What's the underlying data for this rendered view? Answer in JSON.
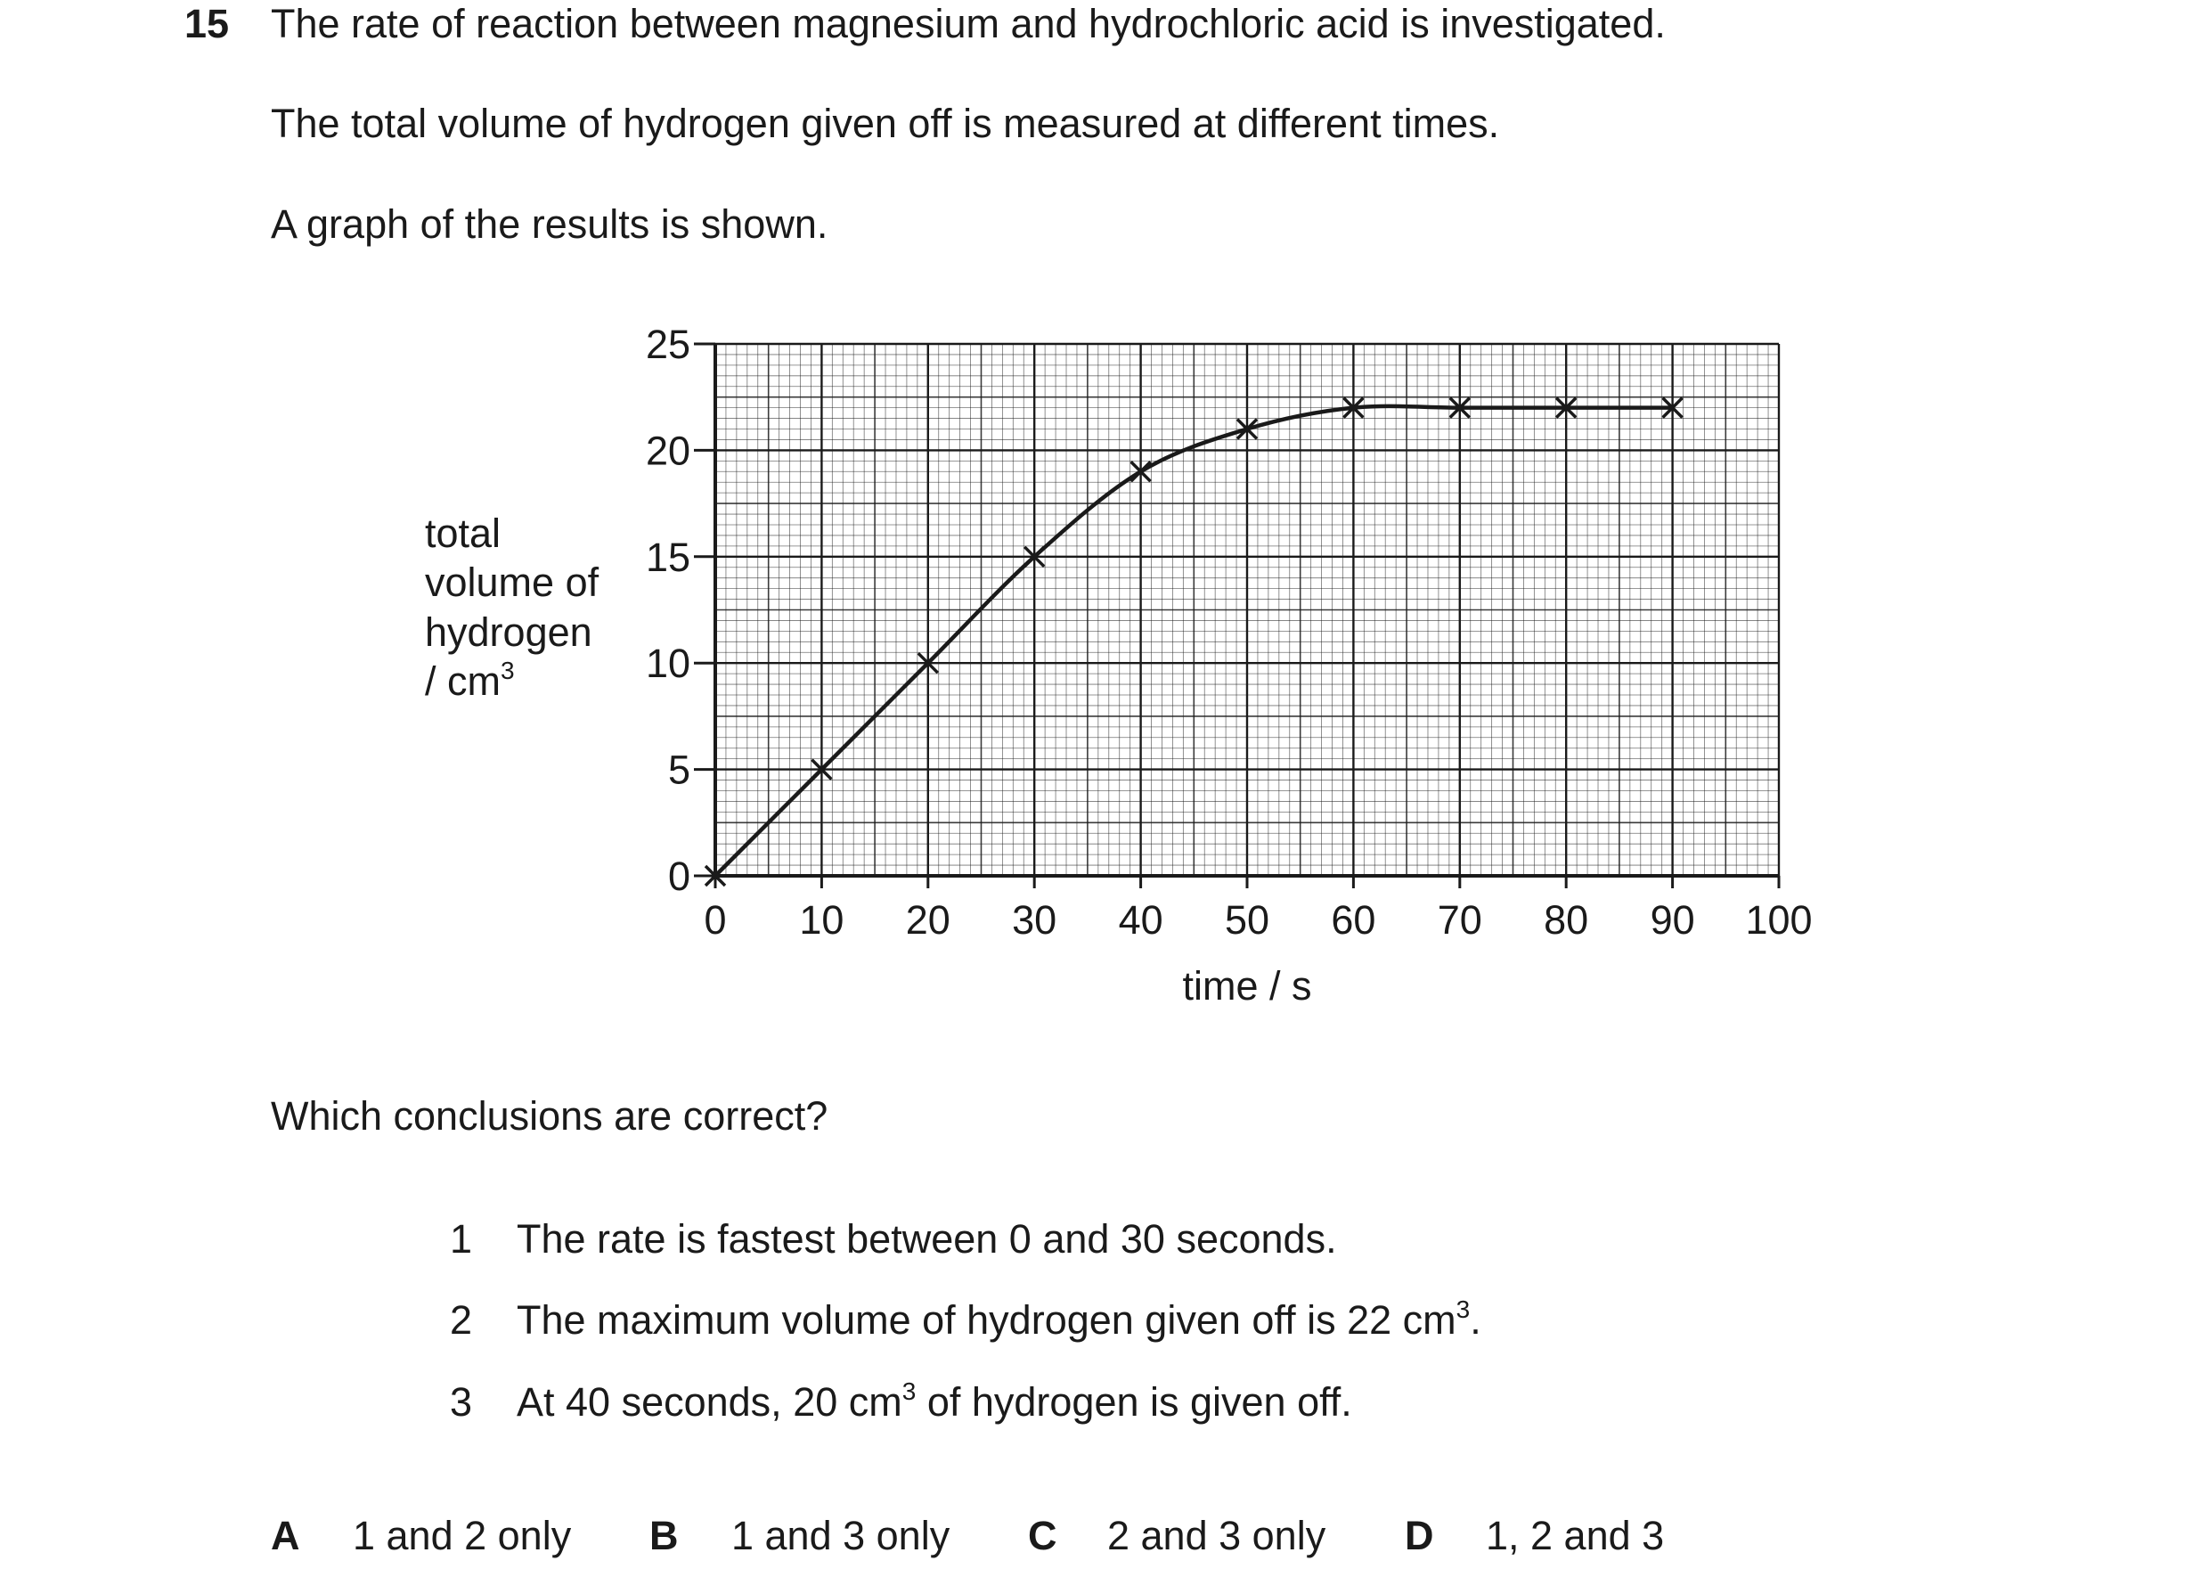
{
  "question": {
    "number": "15",
    "intro1": "The rate of reaction between magnesium and hydrochloric acid is investigated.",
    "intro2": "The total volume of hydrogen given off is measured at different times.",
    "intro3": "A graph of the results is shown.",
    "prompt": "Which conclusions are correct?",
    "statements": [
      {
        "num": "1",
        "text": "The rate is fastest between 0 and 30 seconds.",
        "after": ""
      },
      {
        "num": "2",
        "text": "The maximum volume of hydrogen given off is 22 cm",
        "sup": "3",
        "after": "."
      },
      {
        "num": "3",
        "text": "At 40 seconds, 20 cm",
        "sup": "3",
        "after": " of hydrogen is given off."
      }
    ],
    "options": [
      {
        "letter": "A",
        "text": "1 and 2 only"
      },
      {
        "letter": "B",
        "text": "1 and 3 only"
      },
      {
        "letter": "C",
        "text": "2 and 3 only"
      },
      {
        "letter": "D",
        "text": "1, 2 and 3"
      }
    ]
  },
  "chart_data": {
    "type": "line",
    "xlabel": "time / s",
    "ylabel_lines": [
      "total",
      "volume of",
      "hydrogen",
      "/ cm"
    ],
    "ylabel_sup": "3",
    "xlim": [
      0,
      100
    ],
    "ylim": [
      0,
      25
    ],
    "xticks": [
      "0",
      "10",
      "20",
      "30",
      "40",
      "50",
      "60",
      "70",
      "80",
      "90",
      "100"
    ],
    "yticks": [
      "0",
      "5",
      "10",
      "15",
      "20",
      "25"
    ],
    "grid": true,
    "x": [
      0,
      10,
      20,
      30,
      40,
      50,
      60,
      70,
      80,
      90
    ],
    "y": [
      0,
      5,
      10,
      15,
      19,
      21,
      22,
      22,
      22,
      22
    ],
    "marker": "cross",
    "line_color": "#1a1a1a"
  }
}
